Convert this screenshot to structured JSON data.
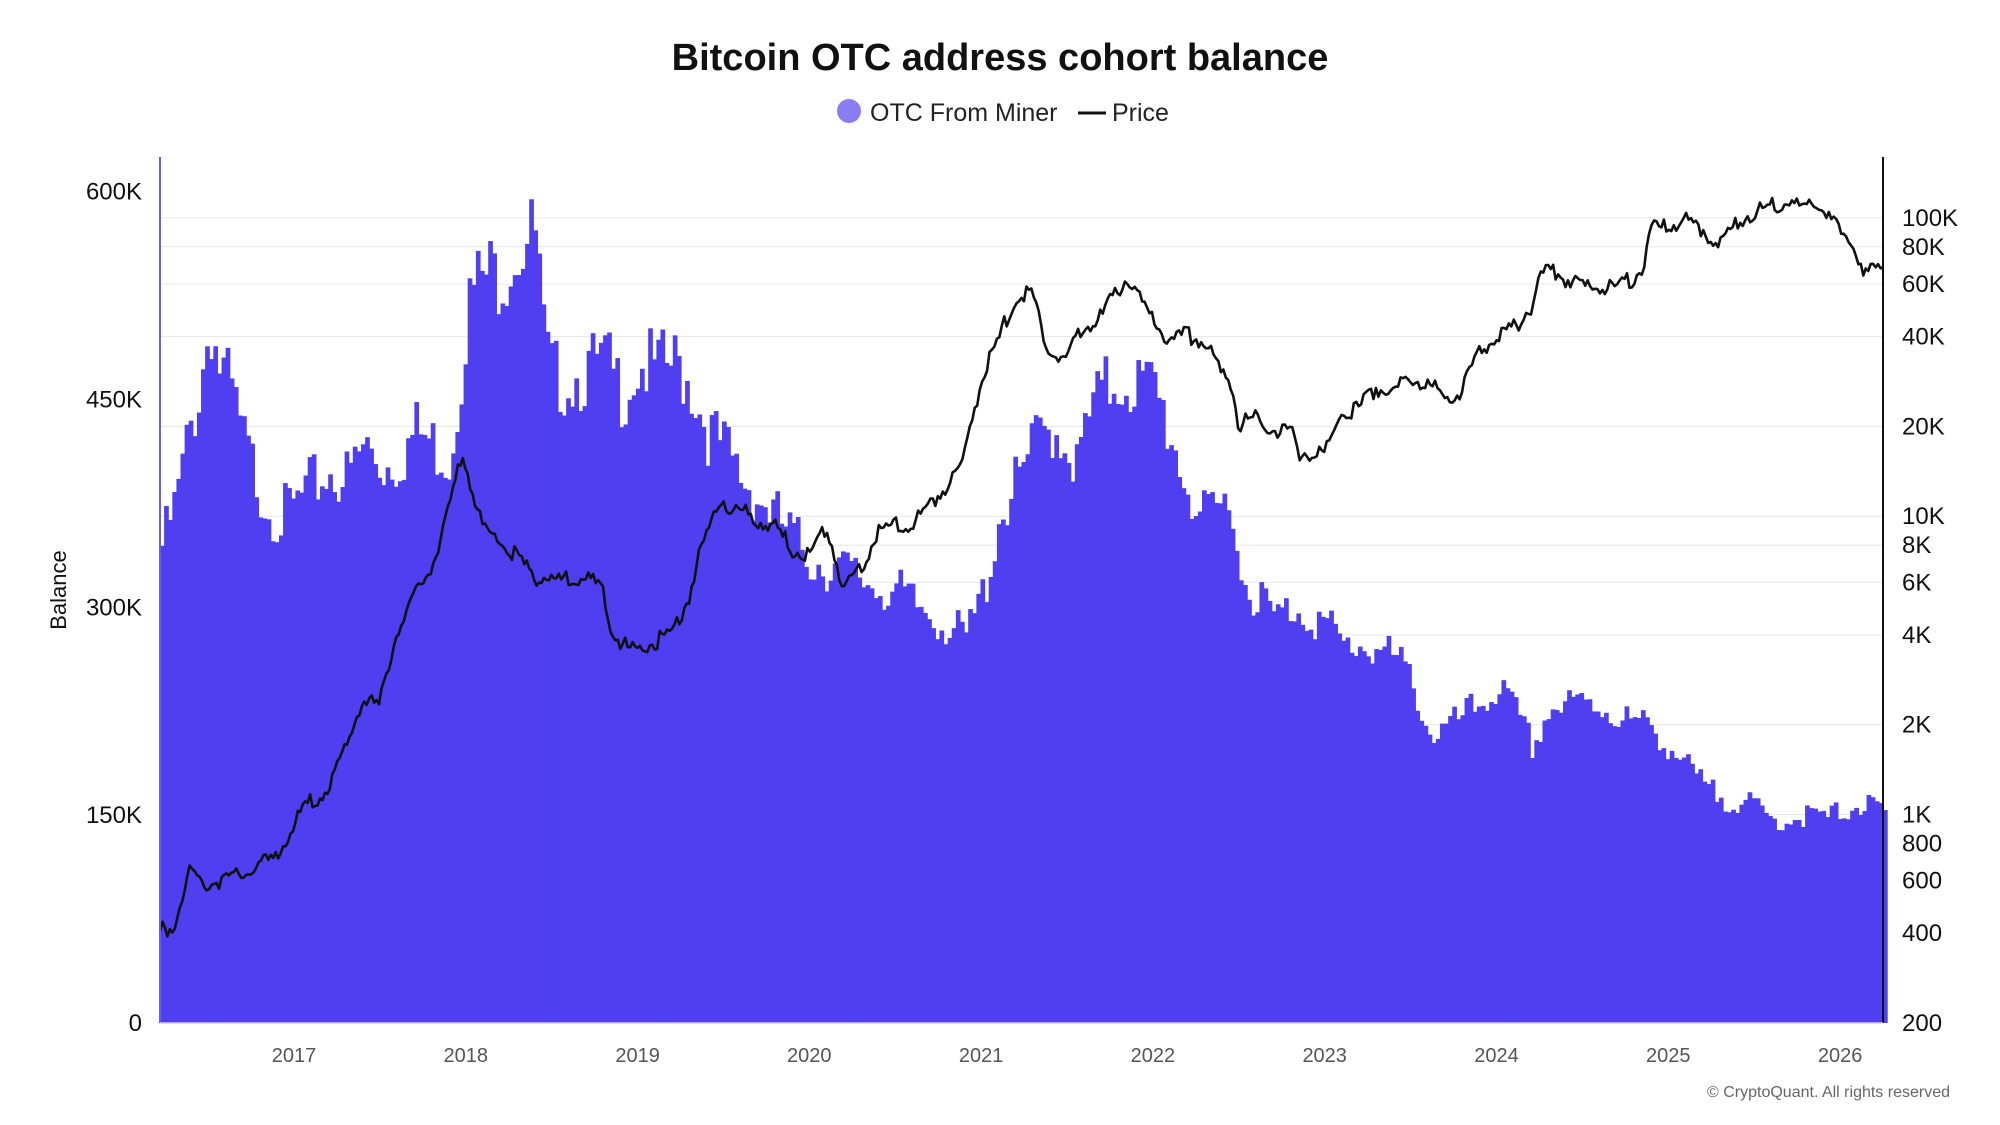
{
  "chart_data": {
    "type": "area",
    "title": "Bitcoin OTC address cohort balance",
    "ylabel": "Balance",
    "xlabel": "",
    "legend": {
      "placement": "top-center",
      "entries": [
        {
          "name": "OTC From Miner",
          "marker": "circle",
          "color": "#8a7cf2"
        },
        {
          "name": "Price",
          "marker": "line",
          "color": "#111111"
        }
      ]
    },
    "colors": {
      "balance": "#4f3ff0",
      "price": "#111111",
      "axis_left": "#6b5cf0",
      "grid": "#e6e6e6"
    },
    "grid": true,
    "x_ticks": [
      "2017",
      "2018",
      "2019",
      "2020",
      "2021",
      "2022",
      "2023",
      "2024",
      "2025",
      "2026"
    ],
    "x_range": [
      2016.22,
      2026.25
    ],
    "y_left": {
      "label": "Balance",
      "range": [
        0,
        625000
      ],
      "ticks": [
        0,
        150000,
        300000,
        450000,
        600000
      ],
      "tick_labels": [
        "0",
        "150K",
        "300K",
        "450K",
        "600K"
      ]
    },
    "y_right": {
      "scale": "log",
      "range": [
        200,
        160000
      ],
      "ticks": [
        200,
        400,
        600,
        800,
        1000,
        2000,
        4000,
        6000,
        8000,
        10000,
        20000,
        40000,
        60000,
        80000,
        100000
      ],
      "tick_labels": [
        "200",
        "400",
        "600",
        "800",
        "1K",
        "2K",
        "4K",
        "6K",
        "8K",
        "10K",
        "20K",
        "40K",
        "60K",
        "80K",
        "100K"
      ]
    },
    "series": [
      {
        "name": "OTC From Miner",
        "axis": "left",
        "x": [
          2016.22,
          2016.3,
          2016.38,
          2016.44,
          2016.5,
          2016.55,
          2016.62,
          2016.7,
          2016.8,
          2016.9,
          2017.0,
          2017.1,
          2017.2,
          2017.3,
          2017.4,
          2017.5,
          2017.6,
          2017.7,
          2017.8,
          2017.9,
          2018.0,
          2018.05,
          2018.1,
          2018.2,
          2018.3,
          2018.4,
          2018.45,
          2018.5,
          2018.6,
          2018.7,
          2018.8,
          2018.9,
          2019.0,
          2019.1,
          2019.2,
          2019.25,
          2019.3,
          2019.4,
          2019.5,
          2019.6,
          2019.7,
          2019.8,
          2019.9,
          2020.0,
          2020.1,
          2020.2,
          2020.3,
          2020.4,
          2020.5,
          2020.6,
          2020.7,
          2020.8,
          2020.9,
          2021.0,
          2021.05,
          2021.1,
          2021.2,
          2021.3,
          2021.4,
          2021.5,
          2021.55,
          2021.6,
          2021.7,
          2021.8,
          2021.9,
          2022.0,
          2022.1,
          2022.2,
          2022.3,
          2022.4,
          2022.45,
          2022.5,
          2022.6,
          2022.7,
          2022.8,
          2022.9,
          2023.0,
          2023.1,
          2023.2,
          2023.3,
          2023.4,
          2023.5,
          2023.6,
          2023.7,
          2023.8,
          2023.9,
          2024.0,
          2024.1,
          2024.2,
          2024.3,
          2024.4,
          2024.5,
          2024.6,
          2024.7,
          2024.8,
          2024.9,
          2025.0,
          2025.1,
          2025.2,
          2025.3,
          2025.4,
          2025.5,
          2025.6,
          2025.7,
          2025.8,
          2025.9,
          2026.0,
          2026.1,
          2026.2,
          2026.25
        ],
        "values": [
          355000,
          385000,
          440000,
          470000,
          525000,
          490000,
          470000,
          430000,
          395000,
          375000,
          385000,
          400000,
          410000,
          405000,
          430000,
          415000,
          420000,
          440000,
          430000,
          420000,
          530000,
          550000,
          555000,
          560000,
          580000,
          585000,
          495000,
          480000,
          480000,
          485000,
          490000,
          470000,
          490000,
          485000,
          490000,
          485000,
          475000,
          440000,
          425000,
          405000,
          390000,
          375000,
          360000,
          345000,
          340000,
          335000,
          330000,
          325000,
          320000,
          310000,
          305000,
          295000,
          285000,
          320000,
          345000,
          380000,
          400000,
          430000,
          445000,
          430000,
          410000,
          445000,
          470000,
          480000,
          475000,
          470000,
          435000,
          395000,
          370000,
          385000,
          395000,
          330000,
          320000,
          300000,
          310000,
          305000,
          295000,
          280000,
          282000,
          278000,
          270000,
          255000,
          215000,
          218000,
          228000,
          238000,
          250000,
          230000,
          205000,
          235000,
          235000,
          238000,
          236000,
          228000,
          222000,
          220000,
          205000,
          190000,
          175000,
          168000,
          165000,
          160000,
          150000,
          152000,
          155000,
          152000,
          158000,
          162000,
          160000,
          155000
        ]
      },
      {
        "name": "Price",
        "axis": "right",
        "x": [
          2016.22,
          2016.3,
          2016.4,
          2016.47,
          2016.55,
          2016.7,
          2016.9,
          2017.0,
          2017.1,
          2017.2,
          2017.3,
          2017.4,
          2017.5,
          2017.6,
          2017.7,
          2017.75,
          2017.85,
          2017.95,
          2017.98,
          2018.05,
          2018.1,
          2018.2,
          2018.3,
          2018.4,
          2018.5,
          2018.6,
          2018.7,
          2018.8,
          2018.85,
          2018.95,
          2019.0,
          2019.1,
          2019.2,
          2019.3,
          2019.4,
          2019.5,
          2019.55,
          2019.6,
          2019.7,
          2019.8,
          2019.9,
          2020.0,
          2020.1,
          2020.15,
          2020.2,
          2020.3,
          2020.4,
          2020.5,
          2020.6,
          2020.7,
          2020.8,
          2020.9,
          2021.0,
          2021.1,
          2021.15,
          2021.2,
          2021.3,
          2021.35,
          2021.4,
          2021.5,
          2021.55,
          2021.6,
          2021.7,
          2021.8,
          2021.85,
          2021.9,
          2022.0,
          2022.1,
          2022.2,
          2022.3,
          2022.4,
          2022.45,
          2022.5,
          2022.6,
          2022.7,
          2022.8,
          2022.85,
          2022.9,
          2023.0,
          2023.1,
          2023.2,
          2023.3,
          2023.4,
          2023.5,
          2023.6,
          2023.7,
          2023.8,
          2023.9,
          2024.0,
          2024.1,
          2024.2,
          2024.25,
          2024.3,
          2024.4,
          2024.5,
          2024.6,
          2024.7,
          2024.8,
          2024.85,
          2024.9,
          2025.0,
          2025.1,
          2025.2,
          2025.3,
          2025.4,
          2025.5,
          2025.6,
          2025.7,
          2025.8,
          2025.85,
          2025.9,
          2026.0,
          2026.05,
          2026.1,
          2026.15,
          2026.2,
          2026.25
        ],
        "values": [
          420,
          440,
          680,
          600,
          620,
          650,
          750,
          950,
          1150,
          1250,
          1700,
          2500,
          2400,
          4200,
          5500,
          6200,
          8000,
          14000,
          17500,
          11500,
          9500,
          8500,
          7500,
          6500,
          6400,
          6300,
          6400,
          5900,
          4200,
          3700,
          3700,
          3900,
          4200,
          5500,
          9000,
          12000,
          10500,
          10800,
          10000,
          9500,
          8000,
          7700,
          9500,
          7500,
          5800,
          7000,
          9000,
          9700,
          9500,
          11500,
          13000,
          16000,
          29000,
          40000,
          48000,
          55000,
          58000,
          43000,
          37000,
          35000,
          40000,
          45000,
          48000,
          60000,
          65000,
          57000,
          47000,
          40000,
          42000,
          40000,
          31000,
          30000,
          21000,
          22000,
          20000,
          20000,
          17000,
          16800,
          16500,
          23000,
          24000,
          28000,
          27000,
          30000,
          29000,
          26000,
          27500,
          37000,
          42000,
          44000,
          52000,
          64000,
          70000,
          65000,
          61000,
          60000,
          61000,
          65000,
          70000,
          95000,
          96000,
          102000,
          95000,
          84000,
          100000,
          108000,
          115000,
          117000,
          112000,
          118000,
          110000,
          92000,
          88000,
          78000,
          68000,
          70000,
          66000
        ]
      }
    ],
    "credit": "© CryptoQuant. All rights reserved"
  }
}
